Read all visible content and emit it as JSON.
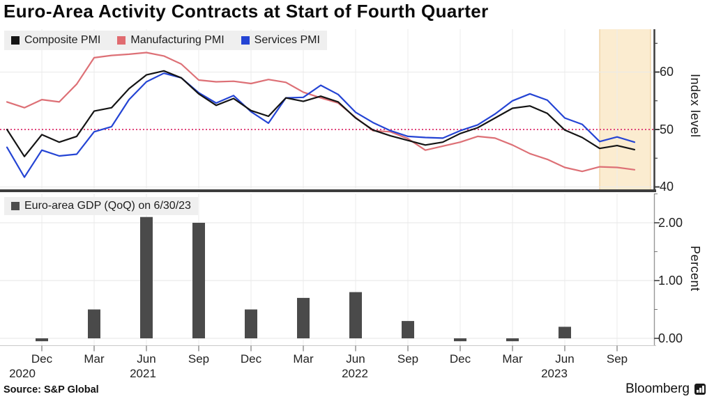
{
  "title": "Euro-Area Activity Contracts at Start of Fourth Quarter",
  "source_label": "Source: S&P Global",
  "brand": {
    "name": "Bloomberg",
    "icon": "bar-chart-logo"
  },
  "top_chart": {
    "legend": [
      {
        "label": "Composite PMI",
        "color": "#141414"
      },
      {
        "label": "Manufacturing PMI",
        "color": "#e06b70"
      },
      {
        "label": "Services PMI",
        "color": "#2444d4"
      }
    ],
    "ylabel": "Index level",
    "ytick_labels": [
      "60",
      "50",
      "40"
    ]
  },
  "bottom_chart": {
    "legend": [
      {
        "label": "Euro-area GDP (QoQ) on 6/30/23",
        "color": "#4d4d4d"
      }
    ],
    "ylabel": "Percent",
    "ytick_labels": [
      "2.00",
      "1.00",
      "0.00"
    ]
  },
  "x_axis": {
    "quarter_labels": [
      "Dec",
      "Mar",
      "Jun",
      "Sep",
      "Dec",
      "Mar",
      "Jun",
      "Sep",
      "Dec",
      "Mar",
      "Jun",
      "Sep"
    ],
    "year_labels": [
      {
        "label": "2020",
        "under_quarter": 0
      },
      {
        "label": "2021",
        "under_quarter": 2
      },
      {
        "label": "2022",
        "under_quarter": 6
      },
      {
        "label": "2023",
        "under_quarter": 10
      }
    ]
  },
  "chart_data": [
    {
      "type": "line",
      "title": "Euro-area PMI indexes",
      "ylabel": "Index level",
      "ylim": [
        40,
        67
      ],
      "yticks": [
        40,
        50,
        60
      ],
      "grid": true,
      "legend_position": "top-left",
      "reference_line": {
        "value": 50,
        "style": "dotted",
        "color": "#e0457b"
      },
      "highlight_region": {
        "from": "Aug 2023",
        "to": "Oct 2023",
        "color": "#fbecd0",
        "edge_color": "#edcd9c"
      },
      "x": [
        "Oct 2020",
        "Nov 2020",
        "Dec 2020",
        "Jan 2021",
        "Feb 2021",
        "Mar 2021",
        "Apr 2021",
        "May 2021",
        "Jun 2021",
        "Jul 2021",
        "Aug 2021",
        "Sep 2021",
        "Oct 2021",
        "Nov 2021",
        "Dec 2021",
        "Jan 2022",
        "Feb 2022",
        "Mar 2022",
        "Apr 2022",
        "May 2022",
        "Jun 2022",
        "Jul 2022",
        "Aug 2022",
        "Sep 2022",
        "Oct 2022",
        "Nov 2022",
        "Dec 2022",
        "Jan 2023",
        "Feb 2023",
        "Mar 2023",
        "Apr 2023",
        "May 2023",
        "Jun 2023",
        "Jul 2023",
        "Aug 2023",
        "Sep 2023",
        "Oct 2023"
      ],
      "series": [
        {
          "name": "Manufacturing PMI",
          "color": "#dd7076",
          "values": [
            54.8,
            53.8,
            55.2,
            54.8,
            57.9,
            62.5,
            62.9,
            63.1,
            63.4,
            62.8,
            61.4,
            58.6,
            58.3,
            58.4,
            58.0,
            58.7,
            58.2,
            56.5,
            55.5,
            54.6,
            52.1,
            49.8,
            49.6,
            48.4,
            46.4,
            47.1,
            47.8,
            48.8,
            48.5,
            47.3,
            45.8,
            44.8,
            43.4,
            42.7,
            43.5,
            43.4,
            43.0
          ]
        },
        {
          "name": "Services PMI",
          "color": "#2444d4",
          "values": [
            46.9,
            41.7,
            46.4,
            45.4,
            45.7,
            49.6,
            50.5,
            55.2,
            58.3,
            59.8,
            59.0,
            56.4,
            54.6,
            55.9,
            53.1,
            51.1,
            55.5,
            55.6,
            57.7,
            56.1,
            53.0,
            51.2,
            49.8,
            48.8,
            48.6,
            48.5,
            49.8,
            50.8,
            52.7,
            55.0,
            56.2,
            55.1,
            52.0,
            50.9,
            47.9,
            48.7,
            47.8
          ]
        },
        {
          "name": "Composite PMI",
          "color": "#141414",
          "values": [
            50.0,
            45.3,
            49.1,
            47.8,
            48.8,
            53.2,
            53.8,
            57.1,
            59.5,
            60.2,
            59.0,
            56.2,
            54.2,
            55.4,
            53.3,
            52.3,
            55.5,
            54.9,
            55.8,
            54.8,
            52.0,
            49.9,
            48.9,
            48.1,
            47.3,
            47.8,
            49.3,
            50.3,
            52.0,
            53.7,
            54.1,
            52.8,
            49.9,
            48.6,
            46.7,
            47.2,
            46.5
          ]
        }
      ]
    },
    {
      "type": "bar",
      "title": "Euro-area GDP (QoQ) on 6/30/23",
      "ylabel": "Percent",
      "ylim": [
        -0.15,
        2.6
      ],
      "yticks": [
        0.0,
        1.0,
        2.0
      ],
      "grid": true,
      "bar_color": "#4a4a4a",
      "categories": [
        "Q4 2020",
        "Q1 2021",
        "Q2 2021",
        "Q3 2021",
        "Q4 2021",
        "Q1 2022",
        "Q2 2022",
        "Q3 2022",
        "Q4 2022",
        "Q1 2023",
        "Q2 2023"
      ],
      "values": [
        -0.05,
        0.5,
        2.1,
        2.0,
        0.5,
        0.7,
        0.8,
        0.3,
        -0.05,
        -0.05,
        0.2
      ]
    }
  ]
}
